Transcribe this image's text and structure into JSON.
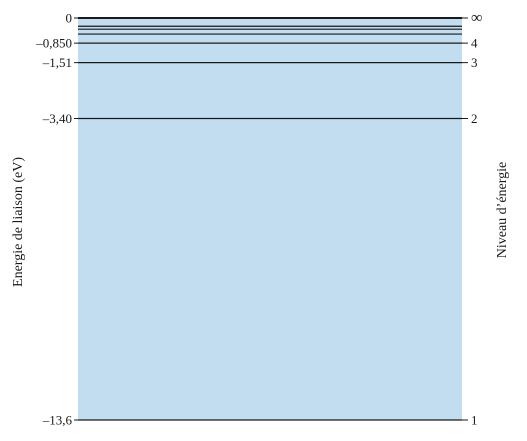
{
  "diagram": {
    "left_axis_title": "Energie de liaison (eV)",
    "right_axis_title": "Niveau d’énergie",
    "colors": {
      "band_fill": "#c2ddf0",
      "line": "#1a1a1a",
      "text": "#1a1a1a"
    },
    "energy_range_ev": [
      -13.6,
      0
    ],
    "levels": [
      {
        "n": "1",
        "energy_ev": -13.6,
        "energy_label": "–13,6"
      },
      {
        "n": "2",
        "energy_ev": -3.4,
        "energy_label": "–3,40"
      },
      {
        "n": "3",
        "energy_ev": -1.51,
        "energy_label": "–1,51"
      },
      {
        "n": "4",
        "energy_ev": -0.85,
        "energy_label": "–0,850"
      },
      {
        "n": "",
        "energy_ev": -0.544,
        "energy_label": ""
      },
      {
        "n": "",
        "energy_ev": -0.378,
        "energy_label": ""
      },
      {
        "n": "",
        "energy_ev": -0.278,
        "energy_label": ""
      },
      {
        "n": "∞",
        "energy_ev": 0,
        "energy_label": "0"
      }
    ]
  }
}
